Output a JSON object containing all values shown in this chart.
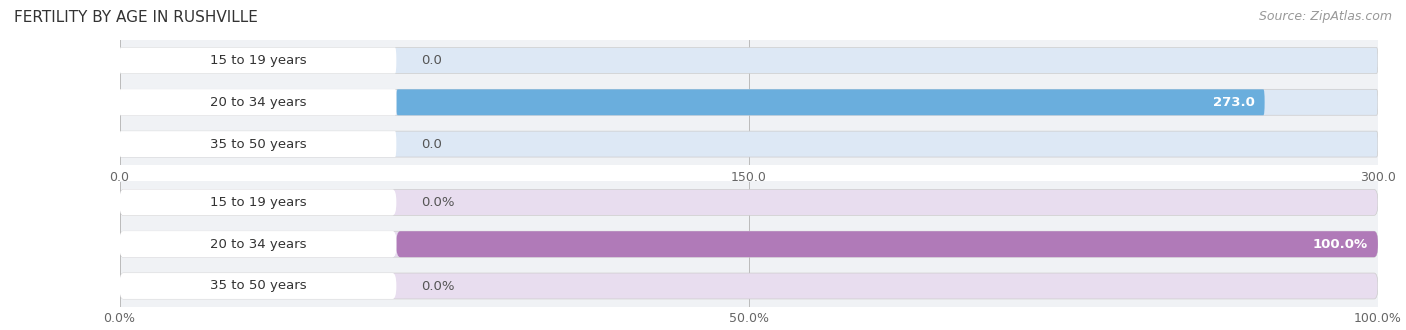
{
  "title": "FERTILITY BY AGE IN RUSHVILLE",
  "source": "Source: ZipAtlas.com",
  "top_chart": {
    "categories": [
      "15 to 19 years",
      "20 to 34 years",
      "35 to 50 years"
    ],
    "values": [
      0.0,
      273.0,
      0.0
    ],
    "xlim": [
      0,
      300.0
    ],
    "xticks": [
      0.0,
      150.0,
      300.0
    ],
    "bar_color": "#6aaedd",
    "bar_bg_color": "#dde8f5",
    "pill_bg_color": "#ffffff"
  },
  "bottom_chart": {
    "categories": [
      "15 to 19 years",
      "20 to 34 years",
      "35 to 50 years"
    ],
    "values": [
      0.0,
      100.0,
      0.0
    ],
    "xlim": [
      0,
      100.0
    ],
    "xticks": [
      0.0,
      50.0,
      100.0
    ],
    "xtick_labels": [
      "0.0%",
      "50.0%",
      "100.0%"
    ],
    "bar_color": "#b07ab8",
    "bar_bg_color": "#e8ddef",
    "pill_bg_color": "#ffffff"
  },
  "fig_bg_color": "#ffffff",
  "chart_bg_color": "#f0f2f5",
  "label_fontsize": 9.5,
  "category_fontsize": 9.5,
  "title_fontsize": 11,
  "source_fontsize": 9,
  "tick_fontsize": 9
}
